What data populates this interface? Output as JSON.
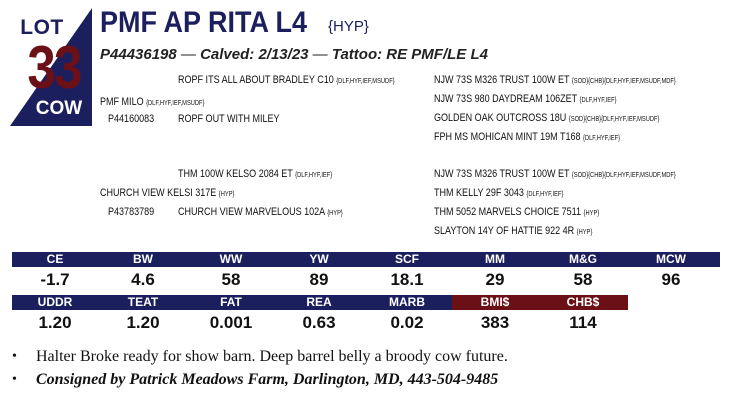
{
  "lot": {
    "label": "LOT",
    "number": "33",
    "sex": "COW"
  },
  "animal": {
    "name": "PMF AP RITA L4",
    "tag": "{HYP}",
    "registration": "P44436198",
    "calved_label": "Calved:",
    "calved": "2/13/23",
    "tattoo_label": "Tattoo:",
    "tattoo": "RE PMF/LE L4",
    "dash": "—"
  },
  "pedigree": {
    "sire": {
      "name": "PMF MILO",
      "epd": "{DLF,HYF,IEF,MSUDF}",
      "reg": "P44160083"
    },
    "sire_sire": {
      "name": "ROPF ITS ALL ABOUT BRADLEY C10",
      "epd": "{DLF,HYF,IEF,MSUDF}"
    },
    "sire_dam": {
      "name": "ROPF OUT WITH MILEY",
      "epd": ""
    },
    "sire_sire_sire": {
      "name": "NJW 73S M326 TRUST 100W ET",
      "epd": "{SOD}{CHB}{DLF,HYF,IEF,MSUDF,MDF}"
    },
    "sire_sire_dam": {
      "name": "NJW 73S 980 DAYDREAM 106ZET",
      "epd": "{DLF,HYF,IEF}"
    },
    "sire_dam_sire": {
      "name": "GOLDEN OAK OUTCROSS 18U",
      "epd": "{SOD}{CHB}{DLF,HYF,IEF,MSUDF}"
    },
    "sire_dam_dam": {
      "name": "FPH MS MOHICAN MINT 19M T168",
      "epd": "{DLF,HYF,IEF}"
    },
    "dam": {
      "name": "CHURCH VIEW KELSI 317E",
      "epd": "{HYP}",
      "reg": "P43783789"
    },
    "dam_sire": {
      "name": "THM 100W KELSO 2084 ET",
      "epd": "{DLF,HYF,IEF}"
    },
    "dam_dam": {
      "name": "CHURCH VIEW MARVELOUS 102A",
      "epd": "{HYP}"
    },
    "dam_sire_sire": {
      "name": "NJW 73S M326 TRUST 100W ET",
      "epd": "{SOD}{CHB}{DLF,HYF,IEF,MSUDF,MDF}"
    },
    "dam_sire_dam": {
      "name": "THM KELLY 29F 3043",
      "epd": "{DLF,HYF,IEF}"
    },
    "dam_dam_sire": {
      "name": "THM 5052 MARVELS CHOICE 7511",
      "epd": "{HYP}"
    },
    "dam_dam_dam": {
      "name": "SLAYTON 14Y OF HATTIE 922 4R",
      "epd": "{HYP}"
    }
  },
  "stats": {
    "row1": [
      {
        "label": "CE",
        "value": "-1.7"
      },
      {
        "label": "BW",
        "value": "4.6"
      },
      {
        "label": "WW",
        "value": "58"
      },
      {
        "label": "YW",
        "value": "89"
      },
      {
        "label": "SCF",
        "value": "18.1"
      },
      {
        "label": "MM",
        "value": "29"
      },
      {
        "label": "M&G",
        "value": "58"
      },
      {
        "label": "MCW",
        "value": "96"
      }
    ],
    "row2": [
      {
        "label": "UDDR",
        "value": "1.20"
      },
      {
        "label": "TEAT",
        "value": "1.20"
      },
      {
        "label": "FAT",
        "value": "0.001"
      },
      {
        "label": "REA",
        "value": "0.63"
      },
      {
        "label": "MARB",
        "value": "0.02"
      },
      {
        "label": "BMI$",
        "value": "383"
      },
      {
        "label": "CHB$",
        "value": "114"
      }
    ],
    "colors": {
      "navy": "#1c1f5e",
      "maroon": "#6b1016"
    }
  },
  "notes": {
    "bullet": "•",
    "line1": "Halter Broke ready for show barn. Deep barrel belly a broody cow future.",
    "line2": "Consigned by Patrick Meadows Farm, Darlington, MD, 443-504-9485"
  }
}
